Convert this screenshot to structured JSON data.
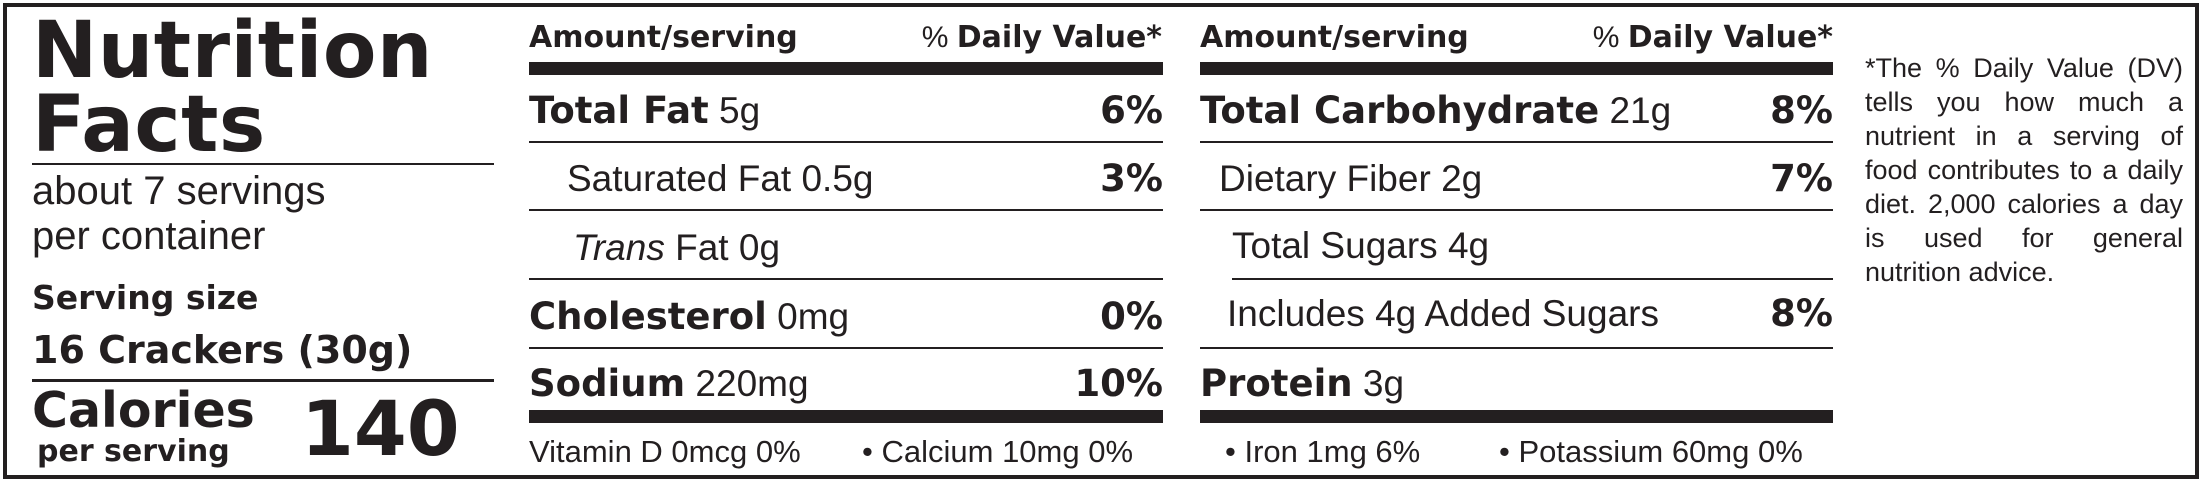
{
  "title_line1": "Nutrition",
  "title_line2": "Facts",
  "servings_line1": "about 7 servings",
  "servings_line2": "per container",
  "serving_size_label": "Serving size",
  "serving_size_value": "16 Crackers (30g)",
  "calories_label": "Calories",
  "per_serving_label": "per serving",
  "calories_value": "140",
  "header": {
    "amount": "Amount/serving",
    "dv_prefix": "%",
    "dv_label": "Daily Value*"
  },
  "left_rows": [
    {
      "name": "Total Fat",
      "amount": "5g",
      "pct": "6%"
    },
    {
      "name": "Saturated Fat",
      "amount": "0.5g",
      "pct": "3%"
    },
    {
      "name": "Trans",
      "amount": "Fat 0g",
      "pct": ""
    },
    {
      "name": "Cholesterol",
      "amount": "0mg",
      "pct": "0%"
    },
    {
      "name": "Sodium",
      "amount": "220mg",
      "pct": "10%"
    }
  ],
  "right_rows": [
    {
      "name": "Total Carbohydrate",
      "amount": "21g",
      "pct": "8%"
    },
    {
      "name": "Dietary Fiber",
      "amount": "2g",
      "pct": "7%"
    },
    {
      "name": "Total Sugars",
      "amount": "4g",
      "pct": ""
    },
    {
      "name": "Includes 4g Added Sugars",
      "amount": "",
      "pct": "8%"
    },
    {
      "name": "Protein",
      "amount": "3g",
      "pct": ""
    }
  ],
  "vitamins": {
    "vitamin_d": "Vitamin D 0mcg 0%",
    "calcium": "Calcium 10mg 0%",
    "iron": "Iron 1mg 6%",
    "potassium": "Potassium 60mg 0%",
    "bullet": "•"
  },
  "footnote": "*The % Daily Value (DV) tells you how much a nutrient in a serving of food contributes to a daily diet. 2,000 calories a day is used for general nutrition advice."
}
